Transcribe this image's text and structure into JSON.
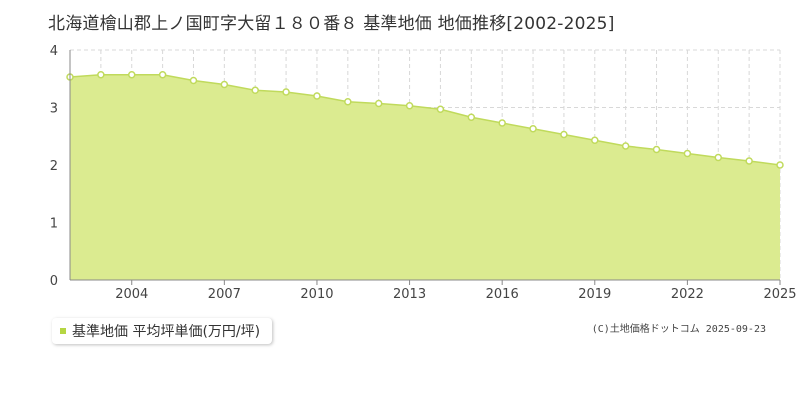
{
  "chart_data": {
    "type": "area",
    "title": "北海道檜山郡上ノ国町字大留１８０番８ 基準地価 地価推移[2002-2025]",
    "xlabel": "",
    "ylabel": "",
    "xlim": [
      2002,
      2025
    ],
    "ylim": [
      0,
      4
    ],
    "x_ticks": [
      "2004",
      "2007",
      "2010",
      "2013",
      "2016",
      "2019",
      "2022",
      "2025"
    ],
    "y_ticks": [
      "0",
      "1",
      "2",
      "3",
      "4"
    ],
    "grid": true,
    "legend": "bottom-left",
    "series": [
      {
        "name": "基準地価 平均坪単価(万円/坪)",
        "x": [
          2002,
          2003,
          2004,
          2005,
          2006,
          2007,
          2008,
          2009,
          2010,
          2011,
          2012,
          2013,
          2014,
          2015,
          2016,
          2017,
          2018,
          2019,
          2020,
          2021,
          2022,
          2023,
          2024,
          2025
        ],
        "values": [
          3.53,
          3.57,
          3.57,
          3.57,
          3.47,
          3.4,
          3.3,
          3.27,
          3.2,
          3.1,
          3.07,
          3.03,
          2.97,
          2.83,
          2.73,
          2.63,
          2.53,
          2.43,
          2.33,
          2.27,
          2.2,
          2.13,
          2.07,
          2.0
        ]
      }
    ]
  },
  "legend": {
    "label": "基準地価 平均坪単価(万円/坪)"
  },
  "credit": "(C)土地価格ドットコム 2025-09-23",
  "colors": {
    "fill": "#dbeb90",
    "line": "#c0da5c",
    "marker_fill": "#ffffff",
    "grid": "#d8d8d8",
    "legend_swatch": "#b5d643"
  }
}
